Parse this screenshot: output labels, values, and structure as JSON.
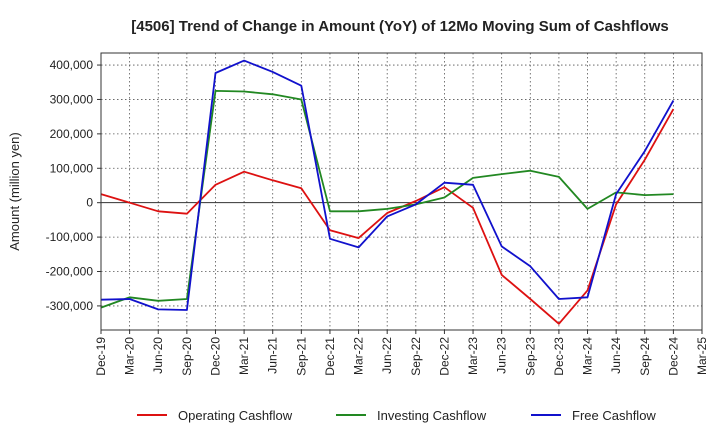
{
  "chart_data": {
    "type": "line",
    "title": "[4506]  Trend of Change in Amount (YoY) of 12Mo Moving Sum of Cashflows",
    "xlabel": "",
    "ylabel": "Amount (million yen)",
    "ylim": [
      -370000,
      435000
    ],
    "yticks": [
      -300000,
      -200000,
      -100000,
      0,
      100000,
      200000,
      300000,
      400000
    ],
    "ytick_labels": [
      "-300,000",
      "-200,000",
      "-100,000",
      "0",
      "100,000",
      "200,000",
      "300,000",
      "400,000"
    ],
    "categories": [
      "Dec-19",
      "Mar-20",
      "Jun-20",
      "Sep-20",
      "Dec-20",
      "Mar-21",
      "Jun-21",
      "Sep-21",
      "Dec-21",
      "Mar-22",
      "Jun-22",
      "Sep-22",
      "Dec-22",
      "Mar-23",
      "Jun-23",
      "Sep-23",
      "Dec-23",
      "Mar-24",
      "Jun-24",
      "Sep-24",
      "Dec-24",
      "Mar-25"
    ],
    "grid": true,
    "legend_position": "bottom",
    "series": [
      {
        "name": "Operating Cashflow",
        "color": "#dd1111",
        "values": [
          25000,
          0,
          -25000,
          -32000,
          52000,
          90000,
          65000,
          42000,
          -80000,
          -103000,
          -30000,
          5000,
          45000,
          -15000,
          -210000,
          -280000,
          -352000,
          -255000,
          -5000,
          125000,
          272000,
          null
        ]
      },
      {
        "name": "Investing Cashflow",
        "color": "#228822",
        "values": [
          -305000,
          -275000,
          -285000,
          -280000,
          325000,
          323000,
          315000,
          300000,
          -25000,
          -25000,
          -18000,
          -5000,
          15000,
          72000,
          83000,
          93000,
          75000,
          -18000,
          30000,
          22000,
          25000,
          null
        ]
      },
      {
        "name": "Free Cashflow",
        "color": "#1111cc",
        "values": [
          -282000,
          -280000,
          -310000,
          -312000,
          377000,
          413000,
          380000,
          340000,
          -105000,
          -130000,
          -40000,
          -5000,
          58000,
          52000,
          -127000,
          -185000,
          -280000,
          -275000,
          25000,
          150000,
          297000,
          null
        ]
      }
    ]
  }
}
